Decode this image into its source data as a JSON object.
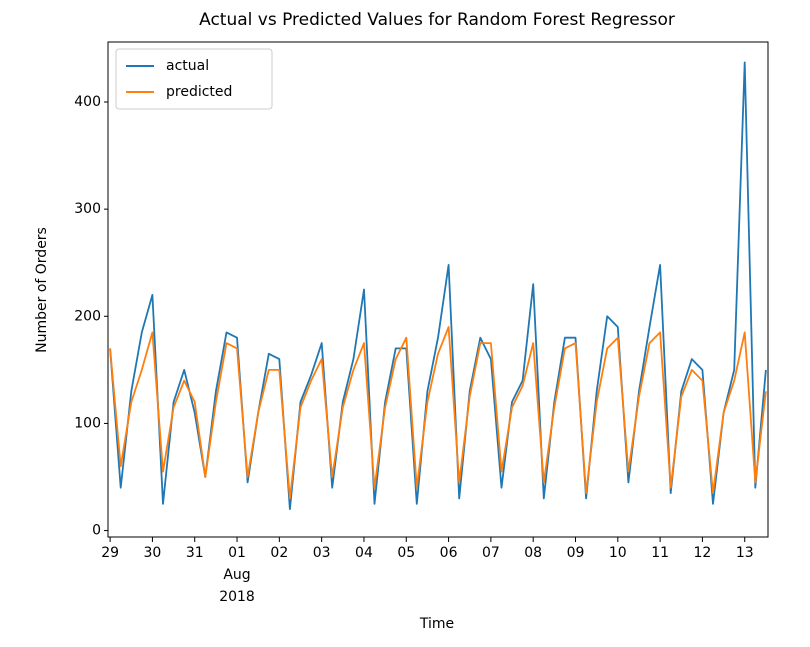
{
  "chart_data": {
    "type": "line",
    "title": "Actual vs Predicted Values for Random Forest Regressor",
    "xlabel": "Time",
    "ylabel": "Number of Orders",
    "x_month": "Aug",
    "x_year": "2018",
    "x": [
      0,
      0.25,
      0.5,
      0.75,
      1,
      1.25,
      1.5,
      1.75,
      2,
      2.25,
      2.5,
      2.75,
      3,
      3.25,
      3.5,
      3.75,
      4,
      4.25,
      4.5,
      4.75,
      5,
      5.25,
      5.5,
      5.75,
      6,
      6.25,
      6.5,
      6.75,
      7,
      7.25,
      7.5,
      7.75,
      8,
      8.25,
      8.5,
      8.75,
      9,
      9.25,
      9.5,
      9.75,
      10,
      10.25,
      10.5,
      10.75,
      11,
      11.25,
      11.5,
      11.75,
      12,
      12.25,
      12.5,
      12.75,
      13,
      13.25,
      13.5,
      13.75,
      14,
      14.25,
      14.5,
      14.75,
      15,
      15.25,
      15.5
    ],
    "series": [
      {
        "name": "actual",
        "color": "#1f77b4",
        "values": [
          170,
          40,
          130,
          185,
          220,
          25,
          120,
          150,
          110,
          50,
          130,
          185,
          180,
          45,
          110,
          165,
          160,
          20,
          120,
          145,
          175,
          40,
          120,
          160,
          225,
          25,
          120,
          170,
          170,
          25,
          130,
          180,
          248,
          30,
          130,
          180,
          160,
          40,
          120,
          140,
          230,
          30,
          120,
          180,
          180,
          30,
          130,
          200,
          190,
          45,
          130,
          190,
          248,
          35,
          130,
          160,
          150,
          25,
          110,
          150,
          437,
          40,
          150
        ]
      },
      {
        "name": "predicted",
        "color": "#ff7f0e",
        "values": [
          170,
          60,
          120,
          150,
          185,
          55,
          115,
          140,
          120,
          50,
          120,
          175,
          170,
          50,
          110,
          150,
          150,
          30,
          115,
          140,
          160,
          50,
          115,
          150,
          175,
          40,
          115,
          160,
          180,
          40,
          120,
          165,
          190,
          45,
          125,
          175,
          175,
          55,
          115,
          135,
          175,
          45,
          115,
          170,
          175,
          35,
          120,
          170,
          180,
          55,
          125,
          175,
          185,
          40,
          125,
          150,
          140,
          35,
          110,
          140,
          185,
          45,
          130
        ]
      }
    ],
    "xlim": [
      -0.05,
      15.55
    ],
    "xticks": [
      {
        "value": 0,
        "label": "29"
      },
      {
        "value": 1,
        "label": "30"
      },
      {
        "value": 2,
        "label": "31"
      },
      {
        "value": 3,
        "label": "01"
      },
      {
        "value": 4,
        "label": "02"
      },
      {
        "value": 5,
        "label": "03"
      },
      {
        "value": 6,
        "label": "04"
      },
      {
        "value": 7,
        "label": "05"
      },
      {
        "value": 8,
        "label": "06"
      },
      {
        "value": 9,
        "label": "07"
      },
      {
        "value": 10,
        "label": "08"
      },
      {
        "value": 11,
        "label": "09"
      },
      {
        "value": 12,
        "label": "10"
      },
      {
        "value": 13,
        "label": "11"
      },
      {
        "value": 14,
        "label": "12"
      },
      {
        "value": 15,
        "label": "13"
      }
    ],
    "ylim": [
      -6,
      456
    ],
    "yticks": [
      0,
      100,
      200,
      300,
      400
    ],
    "legend": "upper left"
  }
}
